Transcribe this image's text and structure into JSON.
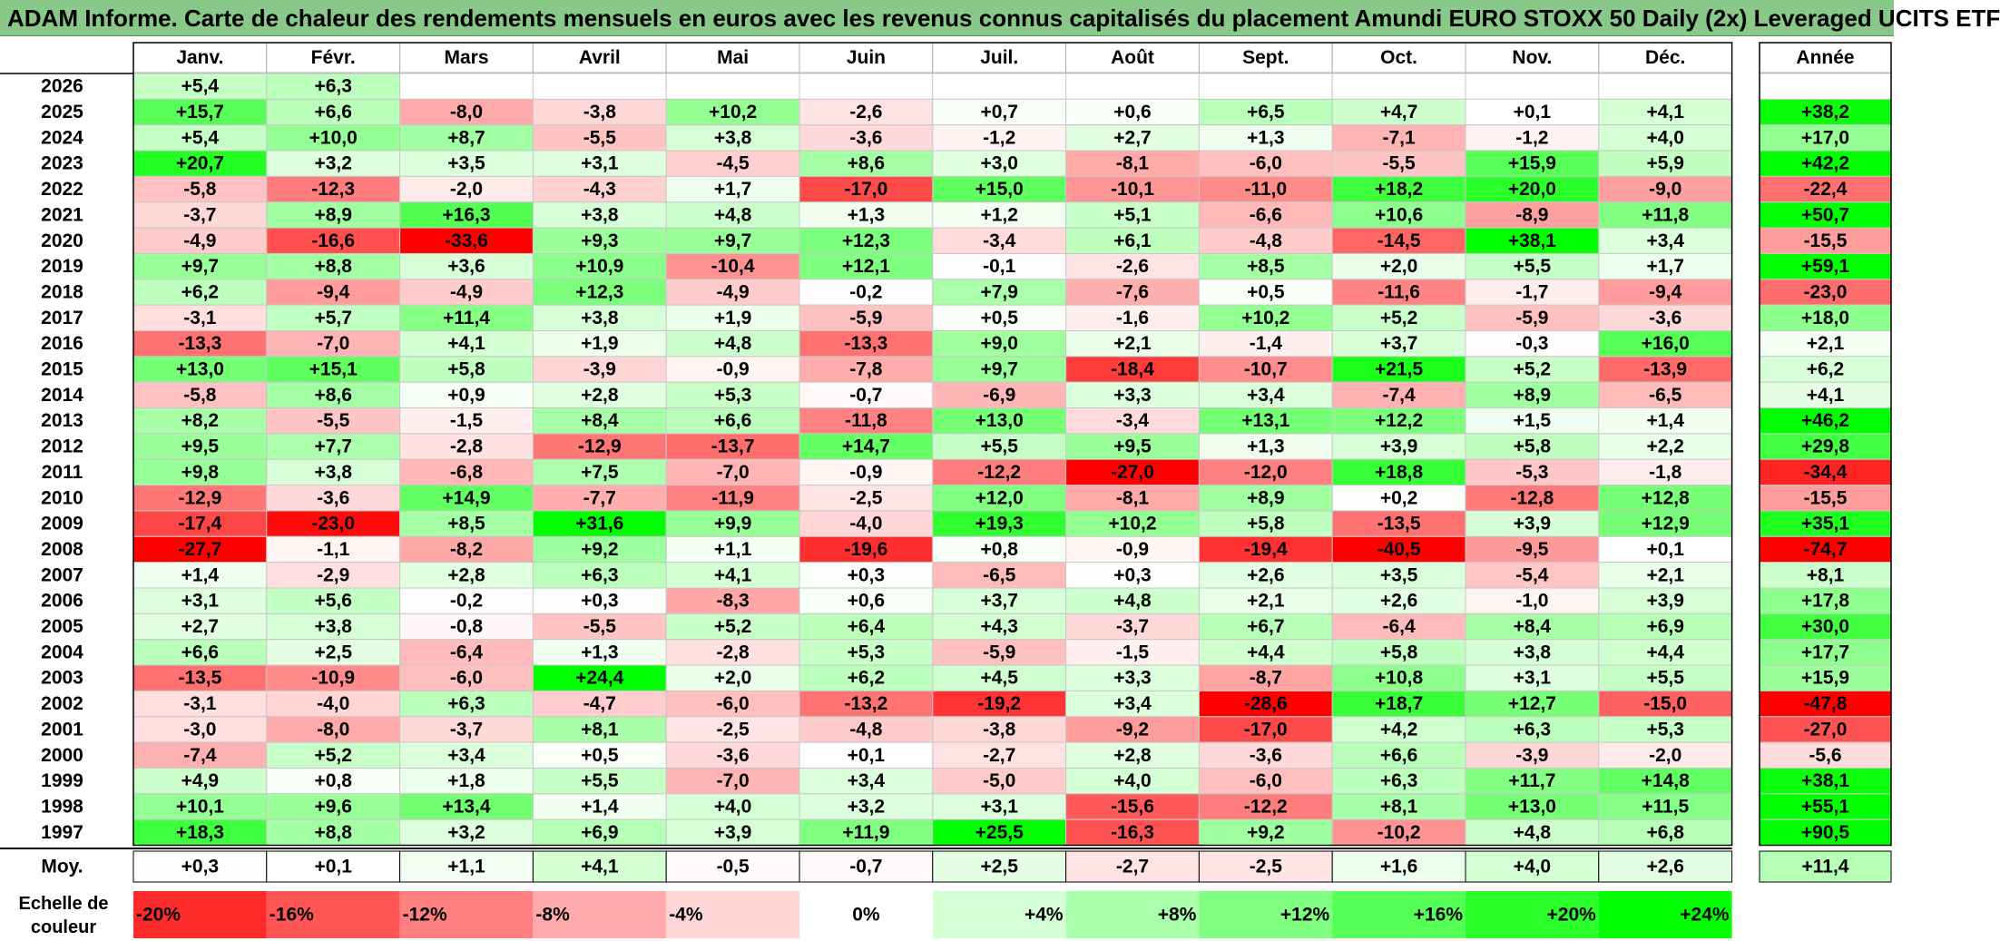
{
  "title": "ADAM Informe. Carte de chaleur des rendements mensuels en euros avec les revenus connus capitalisés du placement Amundi EURO STOXX 50 Daily (2x) Leveraged UCITS ETF",
  "chart_data": {
    "type": "heatmap",
    "months": [
      "Janv.",
      "Févr.",
      "Mars",
      "Avril",
      "Mai",
      "Juin",
      "Juil.",
      "Août",
      "Sept.",
      "Oct.",
      "Nov.",
      "Déc."
    ],
    "year_header": "Année",
    "rows": [
      {
        "year": "2026",
        "values": [
          "+5,4",
          "+6,3",
          "",
          "",
          "",
          "",
          "",
          "",
          "",
          "",
          "",
          ""
        ],
        "annual": ""
      },
      {
        "year": "2025",
        "values": [
          "+15,7",
          "+6,6",
          "-8,0",
          "-3,8",
          "+10,2",
          "-2,6",
          "+0,7",
          "+0,6",
          "+6,5",
          "+4,7",
          "+0,1",
          "+4,1"
        ],
        "annual": "+38,2"
      },
      {
        "year": "2024",
        "values": [
          "+5,4",
          "+10,0",
          "+8,7",
          "-5,5",
          "+3,8",
          "-3,6",
          "-1,2",
          "+2,7",
          "+1,3",
          "-7,1",
          "-1,2",
          "+4,0"
        ],
        "annual": "+17,0"
      },
      {
        "year": "2023",
        "values": [
          "+20,7",
          "+3,2",
          "+3,5",
          "+3,1",
          "-4,5",
          "+8,6",
          "+3,0",
          "-8,1",
          "-6,0",
          "-5,5",
          "+15,9",
          "+5,9"
        ],
        "annual": "+42,2"
      },
      {
        "year": "2022",
        "values": [
          "-5,8",
          "-12,3",
          "-2,0",
          "-4,3",
          "+1,7",
          "-17,0",
          "+15,0",
          "-10,1",
          "-11,0",
          "+18,2",
          "+20,0",
          "-9,0"
        ],
        "annual": "-22,4"
      },
      {
        "year": "2021",
        "values": [
          "-3,7",
          "+8,9",
          "+16,3",
          "+3,8",
          "+4,8",
          "+1,3",
          "+1,2",
          "+5,1",
          "-6,6",
          "+10,6",
          "-8,9",
          "+11,8"
        ],
        "annual": "+50,7"
      },
      {
        "year": "2020",
        "values": [
          "-4,9",
          "-16,6",
          "-33,6",
          "+9,3",
          "+9,7",
          "+12,3",
          "-3,4",
          "+6,1",
          "-4,8",
          "-14,5",
          "+38,1",
          "+3,4"
        ],
        "annual": "-15,5"
      },
      {
        "year": "2019",
        "values": [
          "+9,7",
          "+8,8",
          "+3,6",
          "+10,9",
          "-10,4",
          "+12,1",
          "-0,1",
          "-2,6",
          "+8,5",
          "+2,0",
          "+5,5",
          "+1,7"
        ],
        "annual": "+59,1"
      },
      {
        "year": "2018",
        "values": [
          "+6,2",
          "-9,4",
          "-4,9",
          "+12,3",
          "-4,9",
          "-0,2",
          "+7,9",
          "-7,6",
          "+0,5",
          "-11,6",
          "-1,7",
          "-9,4"
        ],
        "annual": "-23,0"
      },
      {
        "year": "2017",
        "values": [
          "-3,1",
          "+5,7",
          "+11,4",
          "+3,8",
          "+1,9",
          "-5,9",
          "+0,5",
          "-1,6",
          "+10,2",
          "+5,2",
          "-5,9",
          "-3,6"
        ],
        "annual": "+18,0"
      },
      {
        "year": "2016",
        "values": [
          "-13,3",
          "-7,0",
          "+4,1",
          "+1,9",
          "+4,8",
          "-13,3",
          "+9,0",
          "+2,1",
          "-1,4",
          "+3,7",
          "-0,3",
          "+16,0"
        ],
        "annual": "+2,1"
      },
      {
        "year": "2015",
        "values": [
          "+13,0",
          "+15,1",
          "+5,8",
          "-3,9",
          "-0,9",
          "-7,8",
          "+9,7",
          "-18,4",
          "-10,7",
          "+21,5",
          "+5,2",
          "-13,9"
        ],
        "annual": "+6,2"
      },
      {
        "year": "2014",
        "values": [
          "-5,8",
          "+8,6",
          "+0,9",
          "+2,8",
          "+5,3",
          "-0,7",
          "-6,9",
          "+3,3",
          "+3,4",
          "-7,4",
          "+8,9",
          "-6,5"
        ],
        "annual": "+4,1"
      },
      {
        "year": "2013",
        "values": [
          "+8,2",
          "-5,5",
          "-1,5",
          "+8,4",
          "+6,6",
          "-11,8",
          "+13,0",
          "-3,4",
          "+13,1",
          "+12,2",
          "+1,5",
          "+1,4"
        ],
        "annual": "+46,2"
      },
      {
        "year": "2012",
        "values": [
          "+9,5",
          "+7,7",
          "-2,8",
          "-12,9",
          "-13,7",
          "+14,7",
          "+5,5",
          "+9,5",
          "+1,3",
          "+3,9",
          "+5,8",
          "+2,2"
        ],
        "annual": "+29,8"
      },
      {
        "year": "2011",
        "values": [
          "+9,8",
          "+3,8",
          "-6,8",
          "+7,5",
          "-7,0",
          "-0,9",
          "-12,2",
          "-27,0",
          "-12,0",
          "+18,8",
          "-5,3",
          "-1,8"
        ],
        "annual": "-34,4"
      },
      {
        "year": "2010",
        "values": [
          "-12,9",
          "-3,6",
          "+14,9",
          "-7,7",
          "-11,9",
          "-2,5",
          "+12,0",
          "-8,1",
          "+8,9",
          "+0,2",
          "-12,8",
          "+12,8"
        ],
        "annual": "-15,5"
      },
      {
        "year": "2009",
        "values": [
          "-17,4",
          "-23,0",
          "+8,5",
          "+31,6",
          "+9,9",
          "-4,0",
          "+19,3",
          "+10,2",
          "+5,8",
          "-13,5",
          "+3,9",
          "+12,9"
        ],
        "annual": "+35,1"
      },
      {
        "year": "2008",
        "values": [
          "-27,7",
          "-1,1",
          "-8,2",
          "+9,2",
          "+1,1",
          "-19,6",
          "+0,8",
          "-0,9",
          "-19,4",
          "-40,5",
          "-9,5",
          "+0,1"
        ],
        "annual": "-74,7"
      },
      {
        "year": "2007",
        "values": [
          "+1,4",
          "-2,9",
          "+2,8",
          "+6,3",
          "+4,1",
          "+0,3",
          "-6,5",
          "+0,3",
          "+2,6",
          "+3,5",
          "-5,4",
          "+2,1"
        ],
        "annual": "+8,1"
      },
      {
        "year": "2006",
        "values": [
          "+3,1",
          "+5,6",
          "-0,2",
          "+0,3",
          "-8,3",
          "+0,6",
          "+3,7",
          "+4,8",
          "+2,1",
          "+2,6",
          "-1,0",
          "+3,9"
        ],
        "annual": "+17,8"
      },
      {
        "year": "2005",
        "values": [
          "+2,7",
          "+3,8",
          "-0,8",
          "-5,5",
          "+5,2",
          "+6,4",
          "+4,3",
          "-3,7",
          "+6,7",
          "-6,4",
          "+8,4",
          "+6,9"
        ],
        "annual": "+30,0"
      },
      {
        "year": "2004",
        "values": [
          "+6,6",
          "+2,5",
          "-6,4",
          "+1,3",
          "-2,8",
          "+5,3",
          "-5,9",
          "-1,5",
          "+4,4",
          "+5,8",
          "+3,8",
          "+4,4"
        ],
        "annual": "+17,7"
      },
      {
        "year": "2003",
        "values": [
          "-13,5",
          "-10,9",
          "-6,0",
          "+24,4",
          "+2,0",
          "+6,2",
          "+4,5",
          "+3,3",
          "-8,7",
          "+10,8",
          "+3,1",
          "+5,5"
        ],
        "annual": "+15,9"
      },
      {
        "year": "2002",
        "values": [
          "-3,1",
          "-4,0",
          "+6,3",
          "-4,7",
          "-6,0",
          "-13,2",
          "-19,2",
          "+3,4",
          "-28,6",
          "+18,7",
          "+12,7",
          "-15,0"
        ],
        "annual": "-47,8"
      },
      {
        "year": "2001",
        "values": [
          "-3,0",
          "-8,0",
          "-3,7",
          "+8,1",
          "-2,5",
          "-4,8",
          "-3,8",
          "-9,2",
          "-17,0",
          "+4,2",
          "+6,3",
          "+5,3"
        ],
        "annual": "-27,0"
      },
      {
        "year": "2000",
        "values": [
          "-7,4",
          "+5,2",
          "+3,4",
          "+0,5",
          "-3,6",
          "+0,1",
          "-2,7",
          "+2,8",
          "-3,6",
          "+6,6",
          "-3,9",
          "-2,0"
        ],
        "annual": "-5,6"
      },
      {
        "year": "1999",
        "values": [
          "+4,9",
          "+0,8",
          "+1,8",
          "+5,5",
          "-7,0",
          "+3,4",
          "-5,0",
          "+4,0",
          "-6,0",
          "+6,3",
          "+11,7",
          "+14,8"
        ],
        "annual": "+38,1"
      },
      {
        "year": "1998",
        "values": [
          "+10,1",
          "+9,6",
          "+13,4",
          "+1,4",
          "+4,0",
          "+3,2",
          "+3,1",
          "-15,6",
          "-12,2",
          "+8,1",
          "+13,0",
          "+11,5"
        ],
        "annual": "+55,1"
      },
      {
        "year": "1997",
        "values": [
          "+18,3",
          "+8,8",
          "+3,2",
          "+6,9",
          "+3,9",
          "+11,9",
          "+25,5",
          "-16,3",
          "+9,2",
          "-10,2",
          "+4,8",
          "+6,8"
        ],
        "annual": "+90,5"
      }
    ],
    "average": {
      "label": "Moy.",
      "values": [
        "+0,3",
        "+0,1",
        "+1,1",
        "+4,1",
        "-0,5",
        "-0,7",
        "+2,5",
        "-2,7",
        "-2,5",
        "+1,6",
        "+4,0",
        "+2,6"
      ],
      "annual": "+11,4"
    },
    "scale": {
      "label_line1": "Echelle de",
      "label_line2": "couleur",
      "steps": [
        {
          "label": "-20%",
          "value": -20
        },
        {
          "label": "-16%",
          "value": -16
        },
        {
          "label": "-12%",
          "value": -12
        },
        {
          "label": "-8%",
          "value": -8
        },
        {
          "label": "-4%",
          "value": -4
        },
        {
          "label": "0%",
          "value": 0
        },
        {
          "label": "+4%",
          "value": 4
        },
        {
          "label": "+8%",
          "value": 8
        },
        {
          "label": "+12%",
          "value": 12
        },
        {
          "label": "+16%",
          "value": 16
        },
        {
          "label": "+20%",
          "value": 20
        },
        {
          "label": "+24%",
          "value": 24
        }
      ]
    },
    "colors": {
      "negative_max": "#ff0000",
      "positive_max": "#00ff00",
      "neutral": "#ffffff",
      "title_background": "#88c98a"
    }
  }
}
